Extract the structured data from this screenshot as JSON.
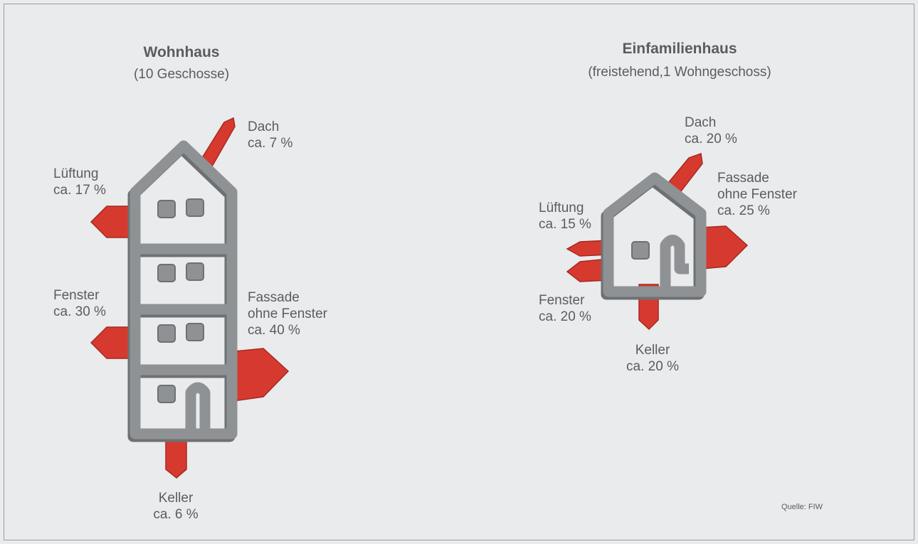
{
  "panels": [
    {
      "title": "Wohnhaus",
      "subtitle": "(10 Geschosse)",
      "items": [
        {
          "lines": [
            "Dach",
            "ca. 7 %"
          ]
        },
        {
          "lines": [
            "Lüftung",
            "ca. 17 %"
          ]
        },
        {
          "lines": [
            "Fenster",
            "ca. 30 %"
          ]
        },
        {
          "lines": [
            "Fassade",
            "ohne Fenster",
            "ca. 40 %"
          ]
        },
        {
          "lines": [
            "Keller",
            "ca. 6 %"
          ]
        }
      ]
    },
    {
      "title": "Einfamilienhaus",
      "subtitle": "(freistehend,1 Wohngeschoss)",
      "items": [
        {
          "lines": [
            "Dach",
            "ca. 20 %"
          ]
        },
        {
          "lines": [
            "Fassade",
            "ohne Fenster",
            "ca. 25 %"
          ]
        },
        {
          "lines": [
            "Lüftung",
            "ca. 15 %"
          ]
        },
        {
          "lines": [
            "Fenster",
            "ca. 20 %"
          ]
        },
        {
          "lines": [
            "Keller",
            "ca. 20 %"
          ]
        }
      ]
    }
  ],
  "source": "Quelle: FIW"
}
